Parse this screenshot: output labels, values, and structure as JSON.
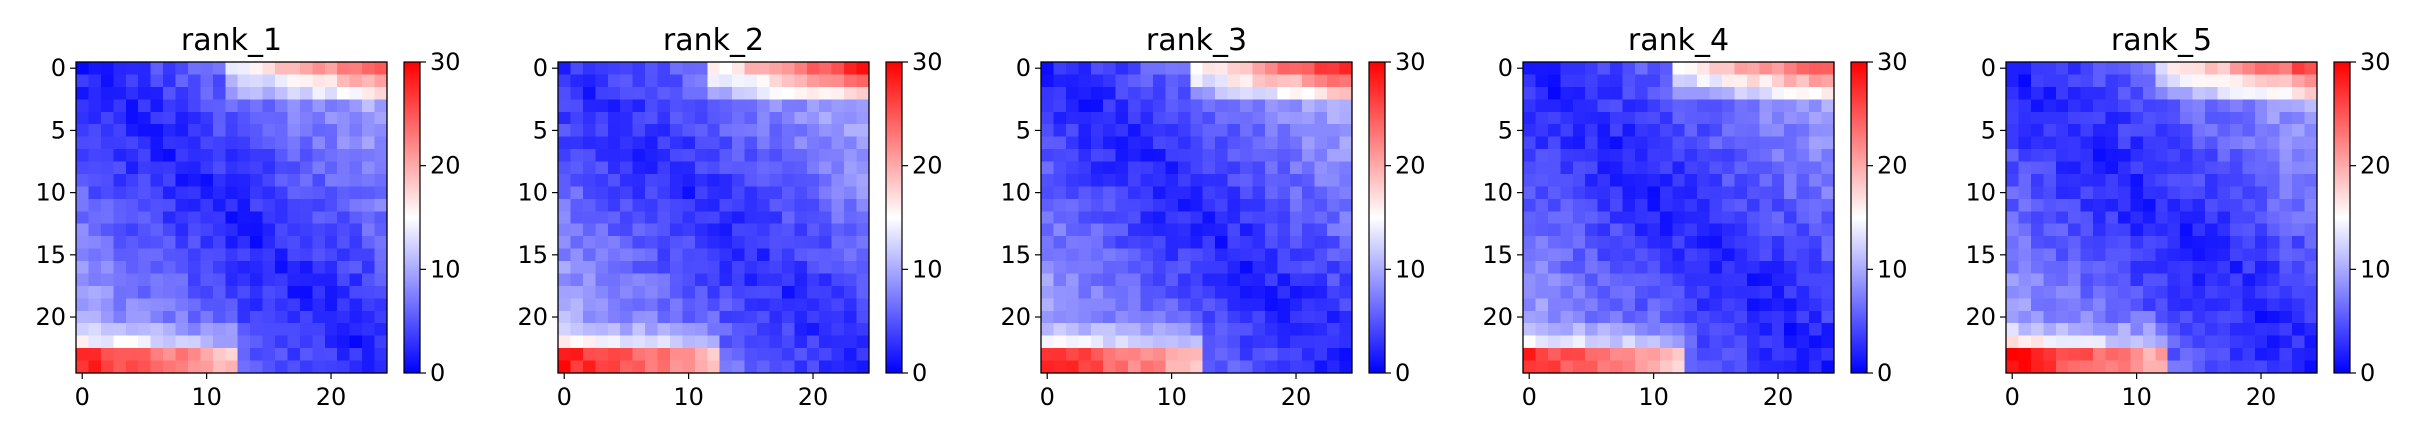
{
  "chart_data": {
    "type": "heatmap",
    "colormap": "bwr",
    "colormap_colors": {
      "low": "#0000ff",
      "mid": "#ffffff",
      "high": "#ff0000"
    },
    "vmin": 0,
    "vmax": 30,
    "grid_size": 25,
    "xlim": [
      0,
      24
    ],
    "ylim": [
      24,
      0
    ],
    "xticks": [
      "0",
      "10",
      "20"
    ],
    "yticks": [
      "0",
      "5",
      "10",
      "15",
      "20"
    ],
    "colorbar_ticks": [
      "0",
      "10",
      "20",
      "30"
    ],
    "grid": false,
    "panels": [
      {
        "title": "rank_1",
        "near": 2.0,
        "far": 11.5,
        "top_peak": 25.0,
        "bottom_peak": 28.0,
        "bottom_rows": [
          23,
          24
        ]
      },
      {
        "title": "rank_2",
        "near": 2.5,
        "far": 12.0,
        "top_peak": 28.0,
        "bottom_peak": 28.5,
        "bottom_rows": [
          23,
          24
        ]
      },
      {
        "title": "rank_3",
        "near": 2.0,
        "far": 12.0,
        "top_peak": 28.0,
        "bottom_peak": 28.0,
        "bottom_rows": [
          23,
          24
        ]
      },
      {
        "title": "rank_4",
        "near": 2.0,
        "far": 11.0,
        "top_peak": 26.0,
        "bottom_peak": 27.5,
        "bottom_rows": [
          23,
          24
        ]
      },
      {
        "title": "rank_5",
        "near": 2.0,
        "far": 11.0,
        "top_peak": 26.0,
        "bottom_peak": 29.0,
        "bottom_rows": [
          23,
          24
        ]
      }
    ]
  }
}
